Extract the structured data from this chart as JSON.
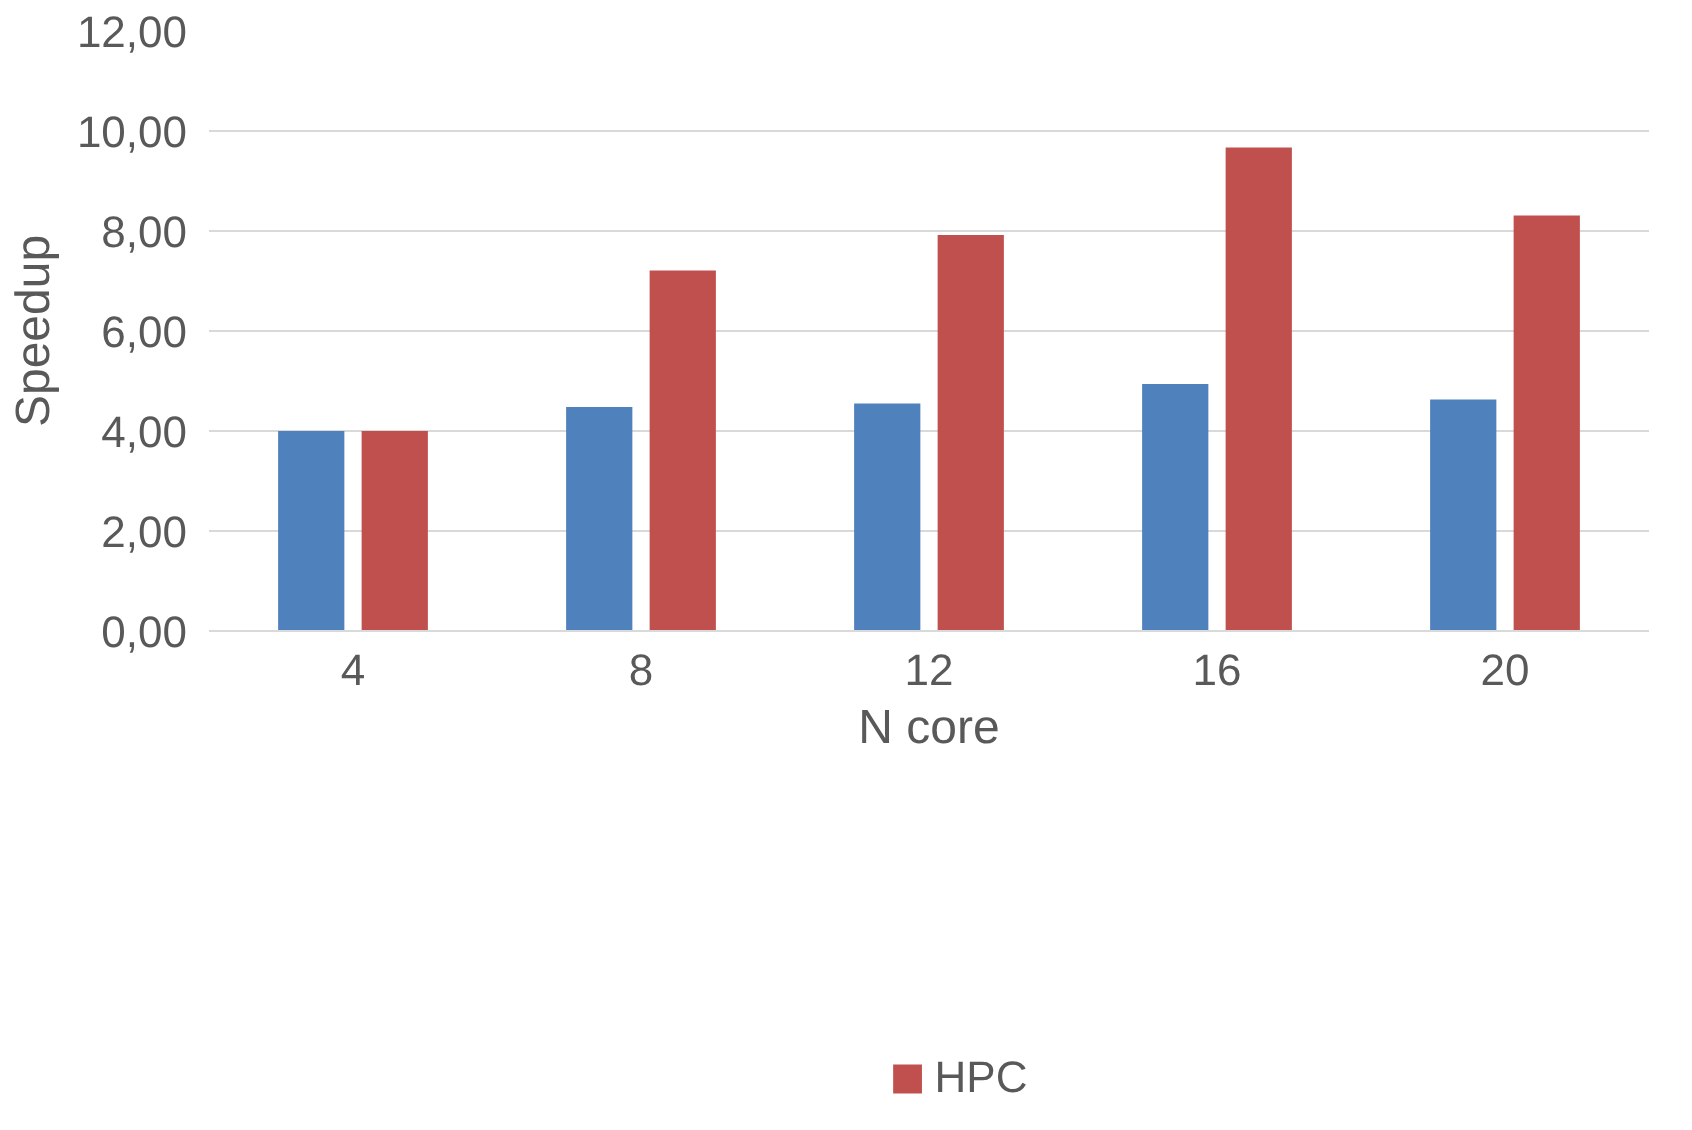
{
  "chart_data": {
    "type": "bar",
    "xlabel": "N core",
    "ylabel": "Speedup",
    "categories": [
      "4",
      "8",
      "12",
      "16",
      "20"
    ],
    "series": [
      {
        "color": "#4f81bd",
        "values": [
          4.0,
          4.48,
          4.55,
          4.94,
          4.63
        ]
      },
      {
        "name": "HPC",
        "color": "#c0504d",
        "values": [
          4.0,
          7.21,
          7.92,
          9.67,
          8.31
        ]
      }
    ],
    "ylim": [
      0,
      12
    ],
    "yticks": [
      {
        "value": 0,
        "label": "0,00"
      },
      {
        "value": 2,
        "label": "2,00"
      },
      {
        "value": 4,
        "label": "4,00"
      },
      {
        "value": 6,
        "label": "6,00"
      },
      {
        "value": 8,
        "label": "8,00"
      },
      {
        "value": 10,
        "label": "10,00"
      },
      {
        "value": 12,
        "label": "12,00"
      }
    ],
    "grid": "y",
    "legend": "bottom"
  }
}
